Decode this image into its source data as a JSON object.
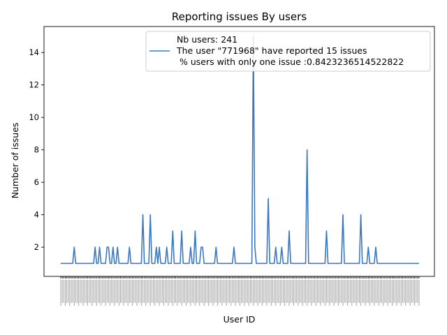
{
  "chart_data": {
    "type": "line",
    "title": "Reporting issues By users",
    "xlabel": "User ID",
    "ylabel": "Number of issues",
    "ylim": [
      0.2,
      15.6
    ],
    "yticks": [
      2,
      4,
      6,
      8,
      10,
      12,
      14
    ],
    "x_count": 241,
    "x_tick_labels_legible": false,
    "grid": false,
    "legend_position": "top-right",
    "legend": {
      "line1": "Nb users: 241",
      "line2": "The user \"771968\" have reported 15 issues",
      "line3": " % users with only one issue :0.8423236514522822"
    },
    "series": [
      {
        "color": "#3b78c4",
        "peaks": [
          {
            "index": 9,
            "value": 2
          },
          {
            "index": 23,
            "value": 2
          },
          {
            "index": 26,
            "value": 2
          },
          {
            "index": 31,
            "value": 2
          },
          {
            "index": 32,
            "value": 2
          },
          {
            "index": 35,
            "value": 2
          },
          {
            "index": 38,
            "value": 2
          },
          {
            "index": 46,
            "value": 2
          },
          {
            "index": 55,
            "value": 4
          },
          {
            "index": 60,
            "value": 4
          },
          {
            "index": 64,
            "value": 2
          },
          {
            "index": 66,
            "value": 2
          },
          {
            "index": 71,
            "value": 2
          },
          {
            "index": 75,
            "value": 3
          },
          {
            "index": 81,
            "value": 3
          },
          {
            "index": 87,
            "value": 2
          },
          {
            "index": 90,
            "value": 3
          },
          {
            "index": 94,
            "value": 2
          },
          {
            "index": 95,
            "value": 2
          },
          {
            "index": 104,
            "value": 2
          },
          {
            "index": 116,
            "value": 2
          },
          {
            "index": 129,
            "value": 15
          },
          {
            "index": 130,
            "value": 2
          },
          {
            "index": 139,
            "value": 5
          },
          {
            "index": 144,
            "value": 2
          },
          {
            "index": 148,
            "value": 2
          },
          {
            "index": 153,
            "value": 3
          },
          {
            "index": 165,
            "value": 8
          },
          {
            "index": 178,
            "value": 3
          },
          {
            "index": 189,
            "value": 4
          },
          {
            "index": 201,
            "value": 4
          },
          {
            "index": 206,
            "value": 2
          },
          {
            "index": 211,
            "value": 2
          }
        ],
        "baseline": 1
      }
    ]
  }
}
